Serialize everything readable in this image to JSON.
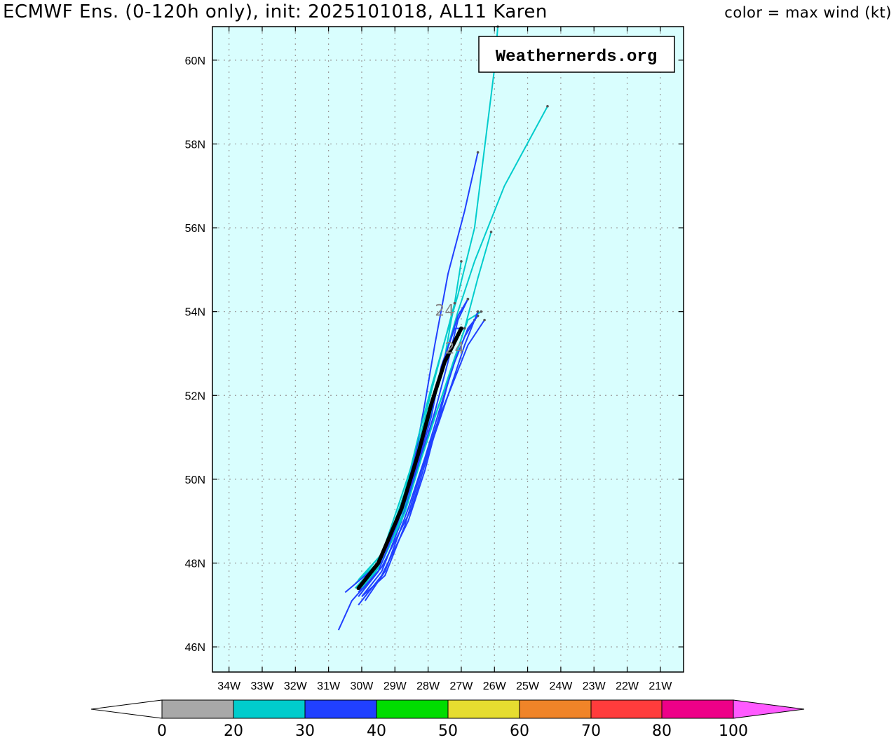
{
  "header": {
    "title": "ECMWF Ens. (0-120h only), init: 2025101018, AL11 Karen",
    "color_note": "color = max wind (kt)"
  },
  "credit": "Weathernerds.org",
  "colors": {
    "ocean": "#d9fefe",
    "grid": "#999999",
    "mean_track": "#000000"
  },
  "chart_data": {
    "type": "map-tracks",
    "projection": "lon-lat",
    "lon_range": [
      -34.5,
      -20.3
    ],
    "lat_range": [
      45.4,
      60.8
    ],
    "lat_ticks": [
      {
        "value": 46,
        "label": "46N"
      },
      {
        "value": 48,
        "label": "48N"
      },
      {
        "value": 50,
        "label": "50N"
      },
      {
        "value": 52,
        "label": "52N"
      },
      {
        "value": 54,
        "label": "54N"
      },
      {
        "value": 56,
        "label": "56N"
      },
      {
        "value": 58,
        "label": "58N"
      },
      {
        "value": 60,
        "label": "60N"
      }
    ],
    "lon_ticks": [
      {
        "value": -34,
        "label": "34W"
      },
      {
        "value": -33,
        "label": "33W"
      },
      {
        "value": -32,
        "label": "32W"
      },
      {
        "value": -31,
        "label": "31W"
      },
      {
        "value": -30,
        "label": "30W"
      },
      {
        "value": -29,
        "label": "29W"
      },
      {
        "value": -28,
        "label": "28W"
      },
      {
        "value": -27,
        "label": "27W"
      },
      {
        "value": -26,
        "label": "26W"
      },
      {
        "value": -25,
        "label": "25W"
      },
      {
        "value": -24,
        "label": "24W"
      },
      {
        "value": -23,
        "label": "23W"
      },
      {
        "value": -22,
        "label": "22W"
      },
      {
        "value": -21,
        "label": "21W"
      }
    ],
    "members": [
      {
        "wind_color": "#00cccc",
        "points": [
          [
            -30.2,
            47.5
          ],
          [
            -29.4,
            48.2
          ],
          [
            -28.8,
            49.6
          ],
          [
            -28.3,
            50.8
          ],
          [
            -27.9,
            52.1
          ],
          [
            -27.5,
            53.3
          ],
          [
            -27.1,
            54.4
          ],
          [
            -26.6,
            56.0
          ],
          [
            -26.0,
            59.8
          ],
          [
            -25.9,
            60.8
          ]
        ]
      },
      {
        "wind_color": "#2040ff",
        "points": [
          [
            -30.1,
            47.3
          ],
          [
            -29.5,
            47.9
          ],
          [
            -28.9,
            49.1
          ],
          [
            -28.4,
            50.5
          ],
          [
            -28.1,
            51.8
          ],
          [
            -27.8,
            53.2
          ],
          [
            -27.4,
            54.9
          ],
          [
            -26.9,
            56.4
          ],
          [
            -26.5,
            57.8
          ]
        ]
      },
      {
        "wind_color": "#00cccc",
        "points": [
          [
            -30.2,
            47.4
          ],
          [
            -29.5,
            48.0
          ],
          [
            -28.9,
            49.2
          ],
          [
            -28.4,
            50.3
          ],
          [
            -27.9,
            51.6
          ],
          [
            -27.5,
            52.9
          ],
          [
            -27.1,
            54.0
          ],
          [
            -26.6,
            55.2
          ],
          [
            -25.7,
            57.0
          ],
          [
            -24.4,
            58.9
          ]
        ]
      },
      {
        "wind_color": "#00cccc",
        "points": [
          [
            -30.0,
            47.4
          ],
          [
            -29.4,
            48.0
          ],
          [
            -28.8,
            49.1
          ],
          [
            -28.3,
            50.3
          ],
          [
            -27.8,
            51.5
          ],
          [
            -27.3,
            52.6
          ],
          [
            -26.9,
            53.6
          ],
          [
            -26.5,
            54.8
          ],
          [
            -26.1,
            55.9
          ]
        ]
      },
      {
        "wind_color": "#00cccc",
        "points": [
          [
            -30.1,
            47.6
          ],
          [
            -29.3,
            48.3
          ],
          [
            -28.7,
            49.7
          ],
          [
            -28.3,
            51.0
          ],
          [
            -27.9,
            52.2
          ],
          [
            -27.5,
            53.3
          ],
          [
            -27.2,
            54.2
          ],
          [
            -27.0,
            55.2
          ]
        ]
      },
      {
        "wind_color": "#00cccc",
        "points": [
          [
            -30.2,
            47.5
          ],
          [
            -29.4,
            48.1
          ],
          [
            -28.8,
            49.4
          ],
          [
            -28.3,
            50.6
          ],
          [
            -27.9,
            51.8
          ],
          [
            -27.5,
            52.9
          ],
          [
            -27.3,
            53.8
          ],
          [
            -27.2,
            54.2
          ]
        ]
      },
      {
        "wind_color": "#2040ff",
        "points": [
          [
            -30.0,
            47.2
          ],
          [
            -29.4,
            47.8
          ],
          [
            -28.8,
            49.0
          ],
          [
            -28.3,
            50.3
          ],
          [
            -27.8,
            51.6
          ],
          [
            -27.4,
            52.8
          ],
          [
            -27.1,
            53.8
          ],
          [
            -26.8,
            54.3
          ]
        ]
      },
      {
        "wind_color": "#2040ff",
        "points": [
          [
            -30.0,
            47.2
          ],
          [
            -29.3,
            47.7
          ],
          [
            -28.7,
            48.9
          ],
          [
            -28.2,
            50.2
          ],
          [
            -27.7,
            51.4
          ],
          [
            -27.2,
            52.4
          ],
          [
            -26.8,
            53.2
          ],
          [
            -26.3,
            53.8
          ]
        ]
      },
      {
        "wind_color": "#2040ff",
        "points": [
          [
            -29.9,
            47.1
          ],
          [
            -29.3,
            47.8
          ],
          [
            -28.6,
            49.3
          ],
          [
            -28.1,
            50.5
          ],
          [
            -27.6,
            51.8
          ],
          [
            -27.2,
            52.8
          ],
          [
            -26.8,
            53.6
          ],
          [
            -26.5,
            53.9
          ]
        ]
      },
      {
        "wind_color": "#2040ff",
        "points": [
          [
            -30.1,
            47.0
          ],
          [
            -29.4,
            47.7
          ],
          [
            -28.6,
            49.0
          ],
          [
            -28.1,
            50.2
          ],
          [
            -27.7,
            51.4
          ],
          [
            -27.3,
            52.6
          ],
          [
            -26.9,
            53.4
          ],
          [
            -26.6,
            53.8
          ]
        ]
      },
      {
        "wind_color": "#00cccc",
        "points": [
          [
            -30.0,
            47.3
          ],
          [
            -29.4,
            48.0
          ],
          [
            -28.7,
            49.2
          ],
          [
            -28.2,
            50.5
          ],
          [
            -27.7,
            51.7
          ],
          [
            -27.2,
            52.9
          ],
          [
            -26.8,
            53.8
          ],
          [
            -26.4,
            54.0
          ]
        ]
      },
      {
        "wind_color": "#2040ff",
        "points": [
          [
            -30.5,
            47.3
          ],
          [
            -29.6,
            47.9
          ],
          [
            -28.8,
            49.2
          ],
          [
            -28.3,
            50.4
          ],
          [
            -27.9,
            51.7
          ],
          [
            -27.5,
            52.9
          ],
          [
            -27.1,
            53.9
          ],
          [
            -26.8,
            54.3
          ]
        ]
      },
      {
        "wind_color": "#2040ff",
        "points": [
          [
            -30.1,
            47.2
          ],
          [
            -29.5,
            47.8
          ],
          [
            -28.9,
            49.0
          ],
          [
            -28.4,
            50.1
          ],
          [
            -27.9,
            51.5
          ],
          [
            -27.6,
            52.7
          ],
          [
            -27.2,
            53.6
          ],
          [
            -26.9,
            53.6
          ]
        ]
      },
      {
        "wind_color": "#2040ff",
        "points": [
          [
            -30.7,
            46.4
          ],
          [
            -30.3,
            47.1
          ],
          [
            -29.4,
            47.9
          ],
          [
            -28.5,
            49.3
          ],
          [
            -28.0,
            50.6
          ],
          [
            -27.4,
            52.0
          ],
          [
            -26.9,
            53.2
          ],
          [
            -26.5,
            54.0
          ]
        ]
      }
    ],
    "ensemble_mean": {
      "color": "#000000",
      "points": [
        [
          -30.1,
          47.4
        ],
        [
          -29.5,
          48.0
        ],
        [
          -28.8,
          49.3
        ],
        [
          -28.3,
          50.6
        ],
        [
          -27.9,
          51.8
        ],
        [
          -27.5,
          52.8
        ],
        [
          -27.0,
          53.6
        ]
      ]
    },
    "time_labels": [
      {
        "text": "24",
        "lon": -27.5,
        "lat": 53.9
      },
      {
        "text": "24",
        "lon": -27.2,
        "lat": 53.0
      }
    ],
    "colorbar": {
      "title": "max wind (kt)",
      "bins": [
        {
          "from": 0,
          "to": 20,
          "color": "#a8a8a8"
        },
        {
          "from": 20,
          "to": 30,
          "color": "#00cccc"
        },
        {
          "from": 30,
          "to": 40,
          "color": "#2040ff"
        },
        {
          "from": 40,
          "to": 50,
          "color": "#00dd00"
        },
        {
          "from": 50,
          "to": 60,
          "color": "#e6dd30"
        },
        {
          "from": 60,
          "to": 70,
          "color": "#f08428"
        },
        {
          "from": 70,
          "to": 80,
          "color": "#ff3c3c"
        },
        {
          "from": 80,
          "to": 100,
          "color": "#ee0088"
        }
      ],
      "low_extend_color": "#ffffff",
      "high_extend_color": "#ff5aff",
      "tick_labels": [
        "0",
        "20",
        "30",
        "40",
        "50",
        "60",
        "70",
        "80",
        "100"
      ]
    }
  }
}
